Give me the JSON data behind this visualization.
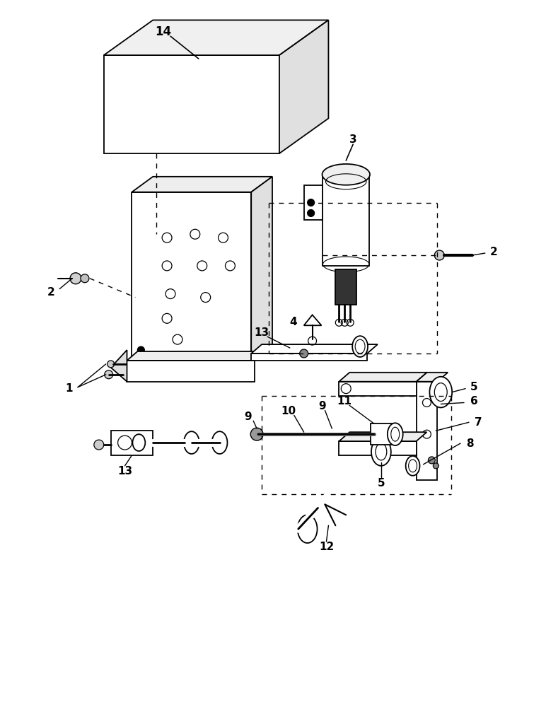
{
  "bg_color": "#ffffff",
  "lc": "#000000",
  "fig_width": 7.72,
  "fig_height": 10.0,
  "dpi": 100
}
